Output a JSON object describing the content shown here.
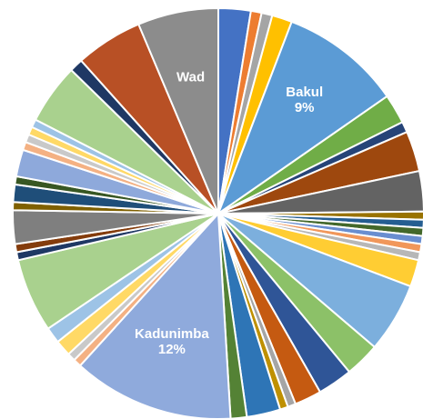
{
  "chart_data": {
    "type": "pie",
    "title": "",
    "slices": [
      {
        "label": "",
        "value": 2.4,
        "color": "#4472C4"
      },
      {
        "label": "",
        "value": 0.8,
        "color": "#ED7D31"
      },
      {
        "label": "",
        "value": 0.8,
        "color": "#A5A5A5"
      },
      {
        "label": "",
        "value": 1.5,
        "color": "#FFC000"
      },
      {
        "label": "Bakul",
        "value": 9.0,
        "color": "#5B9BD5",
        "percent_label": "9%"
      },
      {
        "label": "",
        "value": 2.2,
        "color": "#70AD47"
      },
      {
        "label": "",
        "value": 0.8,
        "color": "#264478"
      },
      {
        "label": "",
        "value": 3.0,
        "color": "#9E480E"
      },
      {
        "label": "",
        "value": 3.0,
        "color": "#636363"
      },
      {
        "label": "",
        "value": 0.6,
        "color": "#997300"
      },
      {
        "label": "",
        "value": 0.6,
        "color": "#255E91"
      },
      {
        "label": "",
        "value": 0.6,
        "color": "#43682B"
      },
      {
        "label": "",
        "value": 0.6,
        "color": "#698ED0"
      },
      {
        "label": "",
        "value": 0.6,
        "color": "#F1975A"
      },
      {
        "label": "",
        "value": 0.6,
        "color": "#B7B7B7"
      },
      {
        "label": "",
        "value": 2.0,
        "color": "#FFCD33"
      },
      {
        "label": "",
        "value": 5.2,
        "color": "#7CAFDD"
      },
      {
        "label": "",
        "value": 2.6,
        "color": "#8CC168"
      },
      {
        "label": "",
        "value": 2.6,
        "color": "#2F5597"
      },
      {
        "label": "",
        "value": 2.0,
        "color": "#C55A11"
      },
      {
        "label": "",
        "value": 0.6,
        "color": "#A5A5A5"
      },
      {
        "label": "",
        "value": 0.6,
        "color": "#BF9000"
      },
      {
        "label": "",
        "value": 2.5,
        "color": "#2E75B6"
      },
      {
        "label": "",
        "value": 1.2,
        "color": "#548235"
      },
      {
        "label": "Kadunimba",
        "value": 12.0,
        "color": "#8FAADC",
        "percent_label": "12%"
      },
      {
        "label": "",
        "value": 0.6,
        "color": "#F4B183"
      },
      {
        "label": "",
        "value": 0.6,
        "color": "#C9C9C9"
      },
      {
        "label": "",
        "value": 1.2,
        "color": "#FFD966"
      },
      {
        "label": "",
        "value": 1.2,
        "color": "#9DC3E6"
      },
      {
        "label": "",
        "value": 5.5,
        "color": "#A9D18E"
      },
      {
        "label": "",
        "value": 0.6,
        "color": "#1F3864"
      },
      {
        "label": "",
        "value": 0.6,
        "color": "#843C0C"
      },
      {
        "label": "",
        "value": 2.5,
        "color": "#7F7F7F"
      },
      {
        "label": "",
        "value": 0.6,
        "color": "#7F6000"
      },
      {
        "label": "",
        "value": 1.3,
        "color": "#1F4E79"
      },
      {
        "label": "",
        "value": 0.6,
        "color": "#385723"
      },
      {
        "label": "",
        "value": 2.0,
        "color": "#8EA9DB"
      },
      {
        "label": "",
        "value": 0.6,
        "color": "#F4B183"
      },
      {
        "label": "",
        "value": 0.6,
        "color": "#C9C9C9"
      },
      {
        "label": "",
        "value": 0.6,
        "color": "#FFD966"
      },
      {
        "label": "",
        "value": 0.6,
        "color": "#9DC3E6"
      },
      {
        "label": "",
        "value": 4.5,
        "color": "#A9D18E"
      },
      {
        "label": "",
        "value": 1.0,
        "color": "#1F3864"
      },
      {
        "label": "",
        "value": 5.0,
        "color": "#B85025"
      },
      {
        "label": "Wad",
        "value": 6.0,
        "color": "#8C8C8C",
        "percent_label": ""
      }
    ]
  }
}
